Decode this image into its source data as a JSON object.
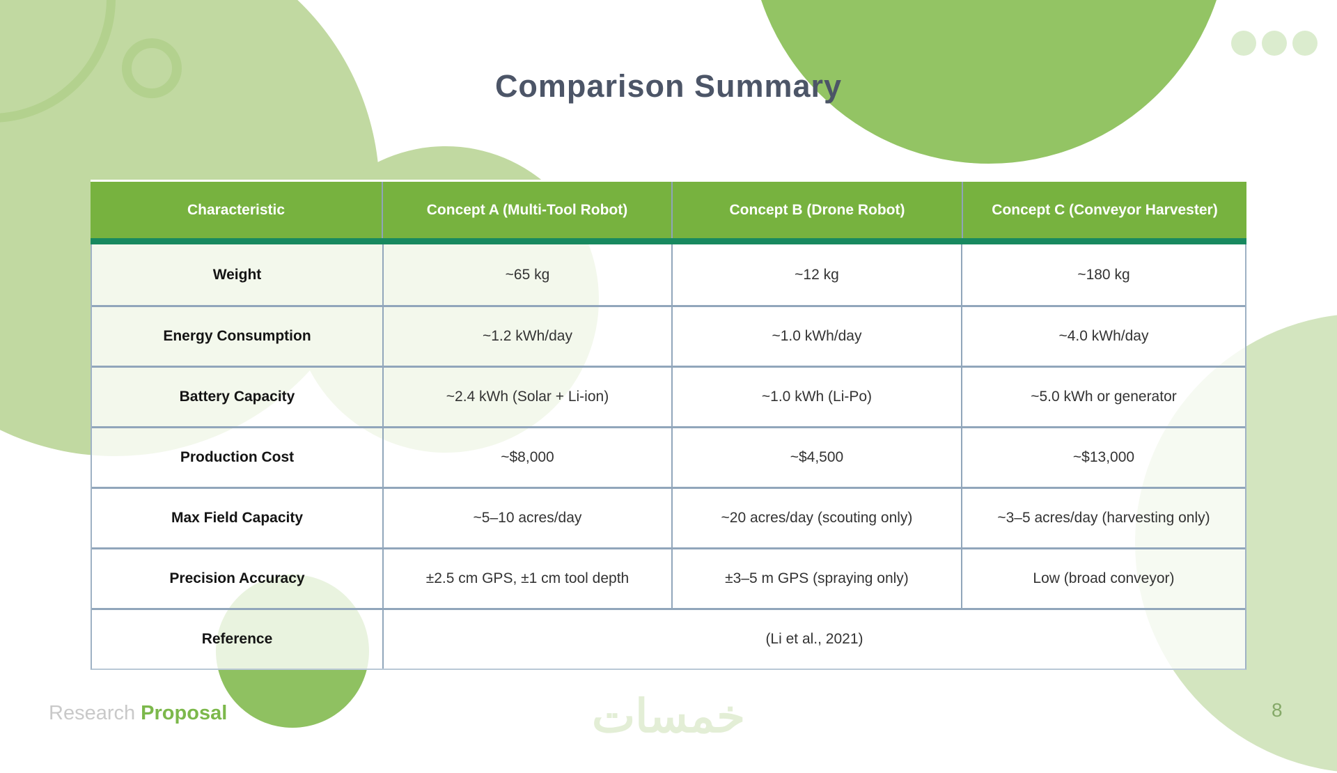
{
  "slide": {
    "title": "Comparison Summary",
    "footer_prefix": "Research ",
    "footer_accent": "Proposal",
    "page_number": "8",
    "watermark_logo": "خمسات"
  },
  "table": {
    "headers": [
      "Characteristic",
      "Concept A (Multi-Tool Robot)",
      "Concept B (Drone Robot)",
      "Concept C (Conveyor Harvester)"
    ],
    "rows": [
      {
        "label": "Weight",
        "values": [
          "~65 kg",
          "~12 kg",
          "~180 kg"
        ]
      },
      {
        "label": "Energy Consumption",
        "values": [
          "~1.2 kWh/day",
          "~1.0 kWh/day",
          "~4.0 kWh/day"
        ]
      },
      {
        "label": "Battery Capacity",
        "values": [
          "~2.4 kWh (Solar + Li-ion)",
          "~1.0 kWh (Li-Po)",
          "~5.0 kWh or generator"
        ]
      },
      {
        "label": "Production Cost",
        "values": [
          "~$8,000",
          "~$4,500",
          "~$13,000"
        ]
      },
      {
        "label": "Max Field Capacity",
        "values": [
          "~5–10 acres/day",
          "~20 acres/day (scouting only)",
          "~3–5 acres/day (harvesting only)"
        ]
      },
      {
        "label": "Precision Accuracy",
        "values": [
          "±2.5 cm GPS, ±1 cm tool depth",
          "±3–5 m GPS (spraying only)",
          "Low (broad conveyor)"
        ]
      },
      {
        "label": "Reference",
        "span_value": "(Li et al., 2021)"
      }
    ]
  },
  "colors": {
    "header_green": "#77b23f",
    "teal_band": "#18895f",
    "accent_green": "#7cb84b",
    "title_slate": "#4c5567",
    "divider_slate": "#91a6bb",
    "circle_strong_green": "#93c464",
    "circle_pale_green": "#c1d9a1",
    "circle_bottom_left_green": "#8fc161",
    "circle_bottom_right_pale": "#d3e5bf"
  }
}
